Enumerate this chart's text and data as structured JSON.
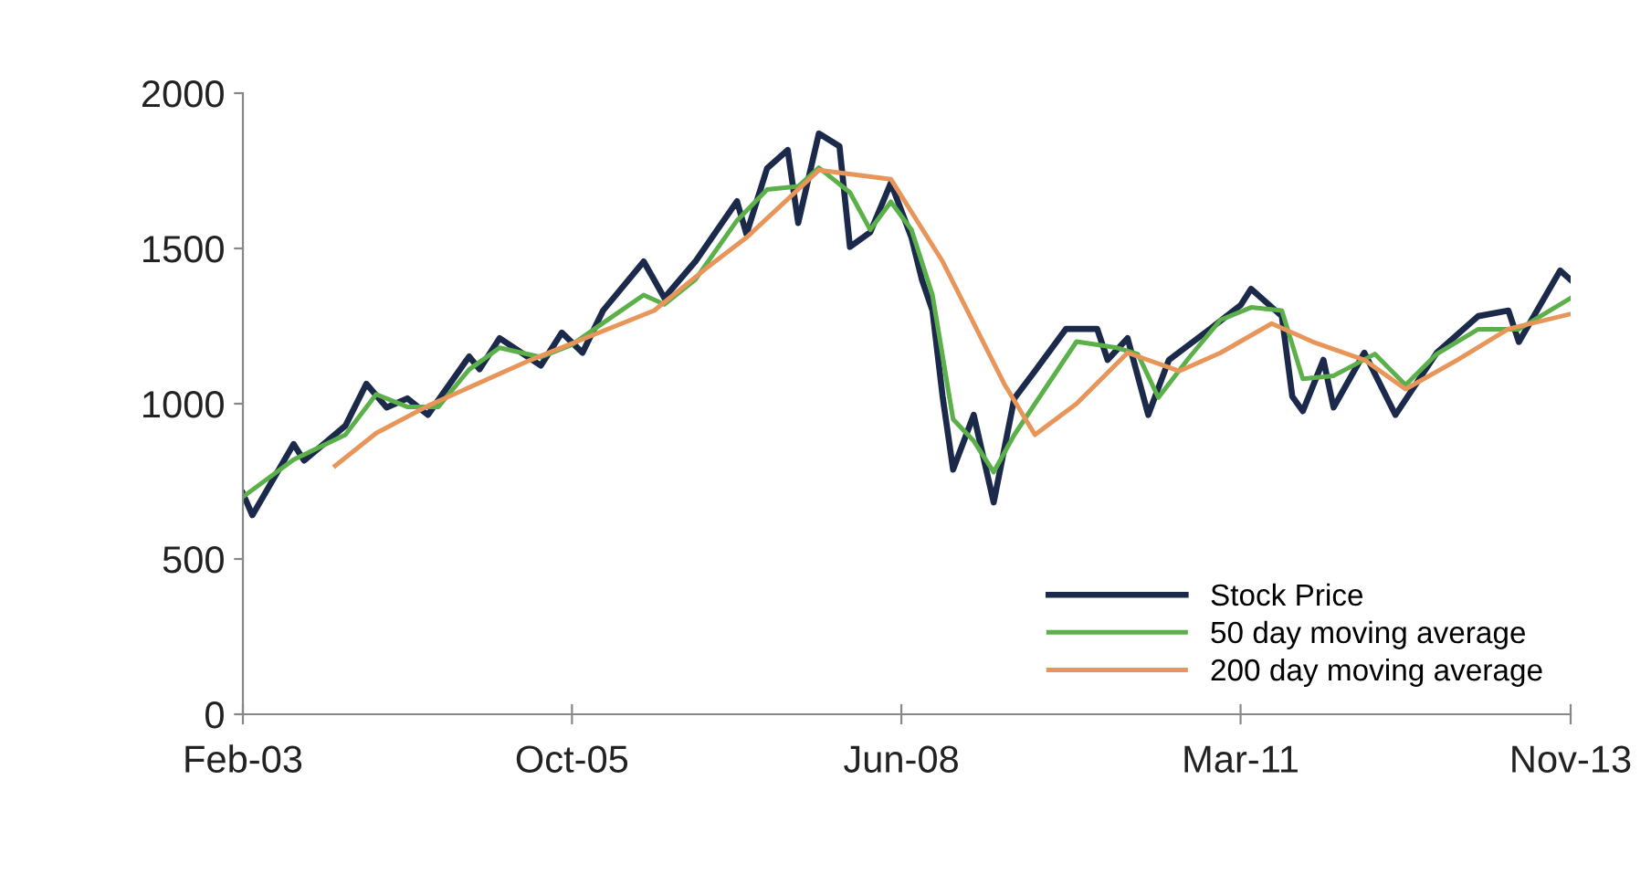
{
  "chart_data": {
    "type": "line",
    "xlim": [
      "2003-02",
      "2013-11"
    ],
    "xticks": [
      {
        "value": "2003-02",
        "label": "Feb-03"
      },
      {
        "value": "2005-10",
        "label": "Oct-05"
      },
      {
        "value": "2008-06",
        "label": "Jun-08"
      },
      {
        "value": "2011-03",
        "label": "Mar-11"
      },
      {
        "value": "2013-11",
        "label": "Nov-13"
      }
    ],
    "ylim": [
      0,
      2000
    ],
    "yticks": [
      0,
      500,
      1000,
      1500,
      2000
    ],
    "grid": false,
    "legend": "bottom right",
    "marker": "none",
    "line_style": "solid",
    "series": [
      {
        "name": "Stock Price",
        "color": "#1b2a4a",
        "x": [
          "2003-02",
          "2003-03",
          "2003-07",
          "2003-08",
          "2003-12",
          "2004-02",
          "2004-04",
          "2004-06",
          "2004-08",
          "2004-12",
          "2005-01",
          "2005-03",
          "2005-07",
          "2005-09",
          "2005-11",
          "2006-01",
          "2006-05",
          "2006-06",
          "2006-07",
          "2006-10",
          "2007-02",
          "2007-03",
          "2007-05",
          "2007-07",
          "2007-08",
          "2007-10",
          "2007-12",
          "2008-01",
          "2008-03",
          "2008-05",
          "2008-07",
          "2008-08",
          "2008-09",
          "2008-10",
          "2008-11",
          "2009-01",
          "2009-03",
          "2009-05",
          "2009-07",
          "2009-10",
          "2010-01",
          "2010-02",
          "2010-04",
          "2010-06",
          "2010-08",
          "2010-12",
          "2011-03",
          "2011-04",
          "2011-07",
          "2011-08",
          "2011-09",
          "2011-11",
          "2011-12",
          "2012-03",
          "2012-06",
          "2012-10",
          "2013-02",
          "2013-05",
          "2013-06",
          "2013-10",
          "2013-11"
        ],
        "values": [
          711,
          641,
          870,
          817,
          929,
          1064,
          988,
          1017,
          964,
          1152,
          1111,
          1211,
          1123,
          1229,
          1164,
          1300,
          1458,
          1399,
          1341,
          1458,
          1652,
          1546,
          1758,
          1817,
          1582,
          1870,
          1829,
          1505,
          1552,
          1711,
          1535,
          1399,
          1300,
          1023,
          788,
          964,
          682,
          1017,
          1105,
          1241,
          1241,
          1141,
          1211,
          964,
          1141,
          1241,
          1317,
          1370,
          1282,
          1023,
          976,
          1141,
          988,
          1164,
          964,
          1164,
          1282,
          1300,
          1199,
          1429,
          1399
        ]
      },
      {
        "name": "50 day moving average",
        "color": "#5bb04a",
        "x": [
          "2003-02",
          "2003-07",
          "2003-12",
          "2004-03",
          "2004-06",
          "2004-09",
          "2004-12",
          "2005-03",
          "2005-07",
          "2005-10",
          "2006-01",
          "2006-05",
          "2006-07",
          "2006-10",
          "2007-02",
          "2007-05",
          "2007-08",
          "2007-10",
          "2008-01",
          "2008-03",
          "2008-05",
          "2008-07",
          "2008-09",
          "2008-11",
          "2009-01",
          "2009-03",
          "2009-05",
          "2009-08",
          "2009-11",
          "2010-03",
          "2010-05",
          "2010-07",
          "2010-10",
          "2011-01",
          "2011-04",
          "2011-07",
          "2011-09",
          "2011-12",
          "2012-04",
          "2012-07",
          "2012-10",
          "2013-02",
          "2013-06",
          "2013-11"
        ],
        "values": [
          700,
          820,
          900,
          1030,
          990,
          990,
          1110,
          1180,
          1150,
          1190,
          1260,
          1350,
          1320,
          1400,
          1590,
          1690,
          1700,
          1760,
          1680,
          1560,
          1650,
          1560,
          1350,
          950,
          880,
          780,
          900,
          1050,
          1200,
          1180,
          1160,
          1020,
          1150,
          1270,
          1310,
          1300,
          1080,
          1090,
          1160,
          1060,
          1160,
          1240,
          1240,
          1340
        ]
      },
      {
        "name": "200 day moving average",
        "color": "#e8955a",
        "x": [
          "2003-11",
          "2004-03",
          "2004-08",
          "2005-06",
          "2006-06",
          "2006-11",
          "2007-03",
          "2007-10",
          "2008-05",
          "2008-10",
          "2009-04",
          "2009-07",
          "2009-11",
          "2010-04",
          "2010-09",
          "2011-01",
          "2011-06",
          "2011-10",
          "2012-03",
          "2012-07",
          "2012-12",
          "2013-05",
          "2013-11"
        ],
        "values": [
          800,
          905,
          993,
          1141,
          1300,
          1435,
          1535,
          1752,
          1723,
          1458,
          1064,
          900,
          1000,
          1164,
          1105,
          1164,
          1258,
          1199,
          1141,
          1047,
          1141,
          1241,
          1289
        ]
      }
    ]
  }
}
